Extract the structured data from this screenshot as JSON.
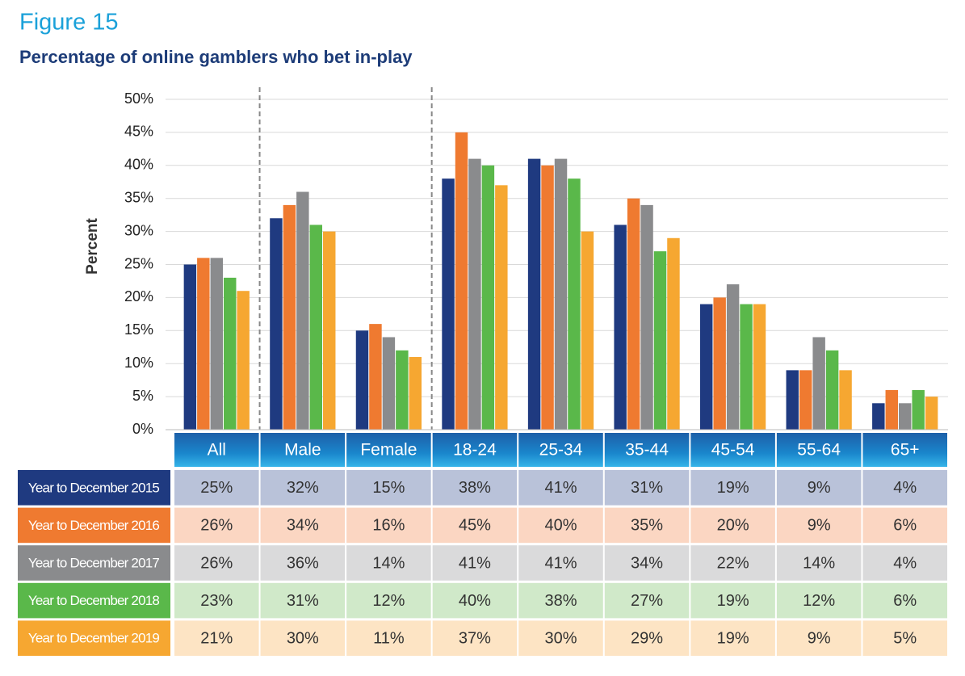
{
  "figure_label": "Figure 15",
  "chart_data": {
    "type": "bar",
    "title": "Percentage of online gamblers who bet in-play",
    "y_label": "Percent",
    "categories": [
      "All",
      "Male",
      "Female",
      "18-24",
      "25-34",
      "35-44",
      "45-54",
      "55-64",
      "65+"
    ],
    "series": [
      {
        "name": "Year to December 2015",
        "color": "#1f3a80",
        "tint": "#b9c2d9",
        "values": [
          25,
          32,
          15,
          38,
          41,
          31,
          19,
          9,
          4
        ],
        "value_labels": [
          "25%",
          "32%",
          "15%",
          "38%",
          "41%",
          "31%",
          "19%",
          "9%",
          "4%"
        ]
      },
      {
        "name": "Year to December 2016",
        "color": "#ef7a30",
        "tint": "#fbd6c2",
        "values": [
          26,
          34,
          16,
          45,
          40,
          35,
          20,
          9,
          6
        ],
        "value_labels": [
          "26%",
          "34%",
          "16%",
          "45%",
          "40%",
          "35%",
          "20%",
          "9%",
          "6%"
        ]
      },
      {
        "name": "Year to December 2017",
        "color": "#8a8b8d",
        "tint": "#dadadb",
        "values": [
          26,
          36,
          14,
          41,
          41,
          34,
          22,
          14,
          4
        ],
        "value_labels": [
          "26%",
          "36%",
          "14%",
          "41%",
          "41%",
          "34%",
          "22%",
          "14%",
          "4%"
        ]
      },
      {
        "name": "Year to December 2018",
        "color": "#5ab84a",
        "tint": "#d0e9c9",
        "values": [
          23,
          31,
          12,
          40,
          38,
          27,
          19,
          12,
          6
        ],
        "value_labels": [
          "23%",
          "31%",
          "12%",
          "40%",
          "38%",
          "27%",
          "19%",
          "12%",
          "6%"
        ]
      },
      {
        "name": "Year to December 2019",
        "color": "#f6a731",
        "tint": "#fde4c4",
        "values": [
          21,
          30,
          11,
          37,
          30,
          29,
          19,
          9,
          5
        ],
        "value_labels": [
          "21%",
          "30%",
          "11%",
          "37%",
          "30%",
          "29%",
          "19%",
          "9%",
          "5%"
        ]
      }
    ],
    "ylim": [
      0,
      50
    ],
    "yticks": [
      {
        "value": 0,
        "label": "0%"
      },
      {
        "value": 5,
        "label": "5%"
      },
      {
        "value": 10,
        "label": "10%"
      },
      {
        "value": 15,
        "label": "15%"
      },
      {
        "value": 20,
        "label": "20%"
      },
      {
        "value": 25,
        "label": "25%"
      },
      {
        "value": 30,
        "label": "30%"
      },
      {
        "value": 35,
        "label": "35%"
      },
      {
        "value": 40,
        "label": "40%"
      },
      {
        "value": 45,
        "label": "45%"
      },
      {
        "value": 50,
        "label": "50%"
      }
    ],
    "grid": true
  }
}
